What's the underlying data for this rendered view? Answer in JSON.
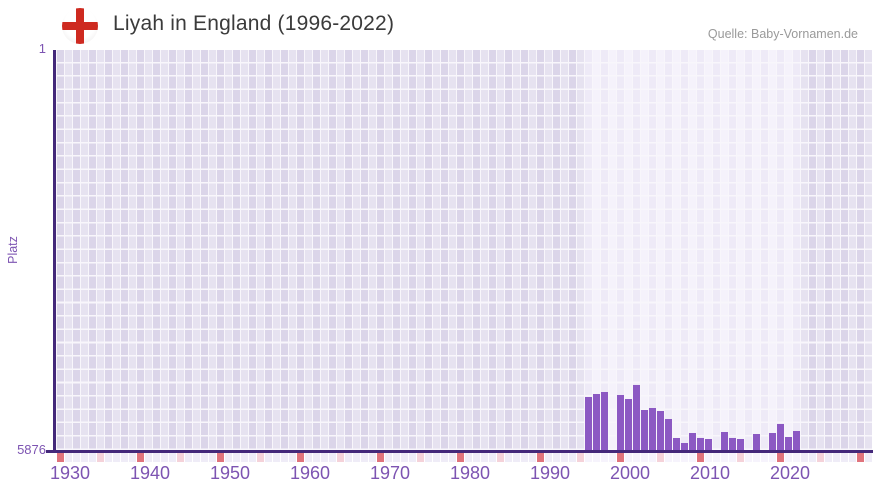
{
  "header": {
    "title": "Liyah in England (1996-2022)",
    "source": "Quelle: Baby-Vornamen.de",
    "flag_icon": "england-flag"
  },
  "chart_data": {
    "type": "bar",
    "title": "Liyah in England (1996-2022)",
    "ylabel": "Platz",
    "y_axis": {
      "top_label": "1",
      "bottom_label": "5876",
      "best_rank": 1,
      "worst_rank": 5876,
      "inverted": true,
      "note": "lower rank number = taller bar"
    },
    "x_axis": {
      "first_year": 1930,
      "last_year": 2031,
      "tick_years": [
        1930,
        1940,
        1950,
        1960,
        1970,
        1980,
        1990,
        2000,
        2010,
        2020
      ],
      "half_decade_ticks": true
    },
    "highlight_years": [
      1996,
      2022
    ],
    "series": [
      {
        "name": "Platz",
        "points": [
          {
            "year": 1996,
            "rank": 5097
          },
          {
            "year": 1997,
            "rank": 5053
          },
          {
            "year": 1998,
            "rank": 5031
          },
          {
            "year": 1999,
            "rank": null
          },
          {
            "year": 2000,
            "rank": 5075
          },
          {
            "year": 2001,
            "rank": 5126
          },
          {
            "year": 2002,
            "rank": 4928
          },
          {
            "year": 2003,
            "rank": 5288
          },
          {
            "year": 2004,
            "rank": 5266
          },
          {
            "year": 2005,
            "rank": 5310
          },
          {
            "year": 2006,
            "rank": 5428
          },
          {
            "year": 2007,
            "rank": 5699
          },
          {
            "year": 2008,
            "rank": 5773
          },
          {
            "year": 2009,
            "rank": 5633
          },
          {
            "year": 2010,
            "rank": 5707
          },
          {
            "year": 2011,
            "rank": 5714
          },
          {
            "year": 2012,
            "rank": null
          },
          {
            "year": 2013,
            "rank": 5611
          },
          {
            "year": 2014,
            "rank": 5699
          },
          {
            "year": 2015,
            "rank": 5714
          },
          {
            "year": 2016,
            "rank": null
          },
          {
            "year": 2017,
            "rank": 5640
          },
          {
            "year": 2019,
            "rank": 5625
          },
          {
            "year": 2018,
            "rank": null
          },
          {
            "year": 2020,
            "rank": 5493
          },
          {
            "year": 2021,
            "rank": 5684
          },
          {
            "year": 2022,
            "rank": 5603
          }
        ]
      }
    ],
    "legend": null,
    "grid": true
  },
  "colors": {
    "bar": "#8c59c3",
    "axis": "#44287a",
    "axis_label": "#7d54b2",
    "title": "#3b3b3b",
    "source": "#9a9a9a",
    "flag_red": "#ce2a20",
    "grid_even": "#dbd5e9",
    "grid_odd": "#e6e2f0",
    "grid_hl_even": "#eeeaf7",
    "grid_hl_odd": "#f5f2fb",
    "gridline": "#f8f6fb",
    "tick_plain": "#efecf7",
    "tick_plain_hl": "#f6f3fc",
    "tick_decade": "#e0737c",
    "tick_half": "#f5d2d9"
  }
}
